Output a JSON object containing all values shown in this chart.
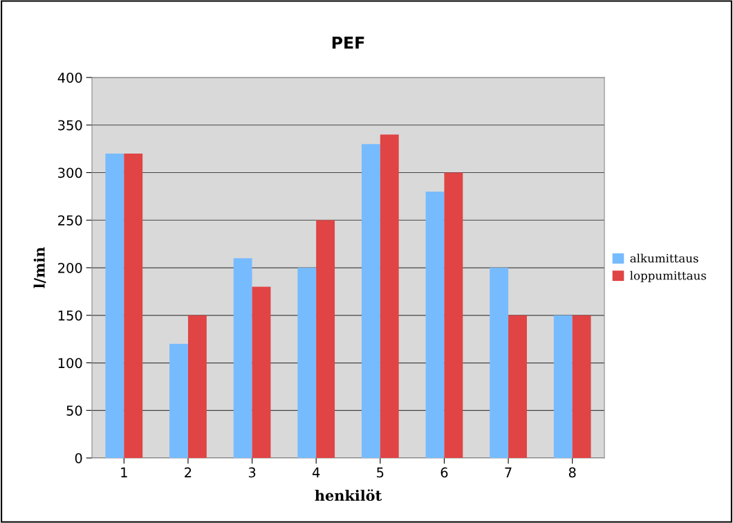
{
  "chart_data": {
    "type": "bar",
    "title": "PEF",
    "xlabel": "henkilöt",
    "ylabel": "l/min",
    "categories": [
      "1",
      "2",
      "3",
      "4",
      "5",
      "6",
      "7",
      "8"
    ],
    "series": [
      {
        "name": "alkumittaus",
        "color": "#77bbff",
        "values": [
          320,
          120,
          210,
          200,
          330,
          280,
          200,
          150
        ]
      },
      {
        "name": "loppumittaus",
        "color": "#e04444",
        "values": [
          320,
          150,
          180,
          250,
          340,
          300,
          150,
          150
        ]
      }
    ],
    "ylim": [
      0,
      400
    ],
    "yticks": [
      0,
      50,
      100,
      150,
      200,
      250,
      300,
      350,
      400
    ],
    "grid": "y",
    "legend": "right"
  }
}
